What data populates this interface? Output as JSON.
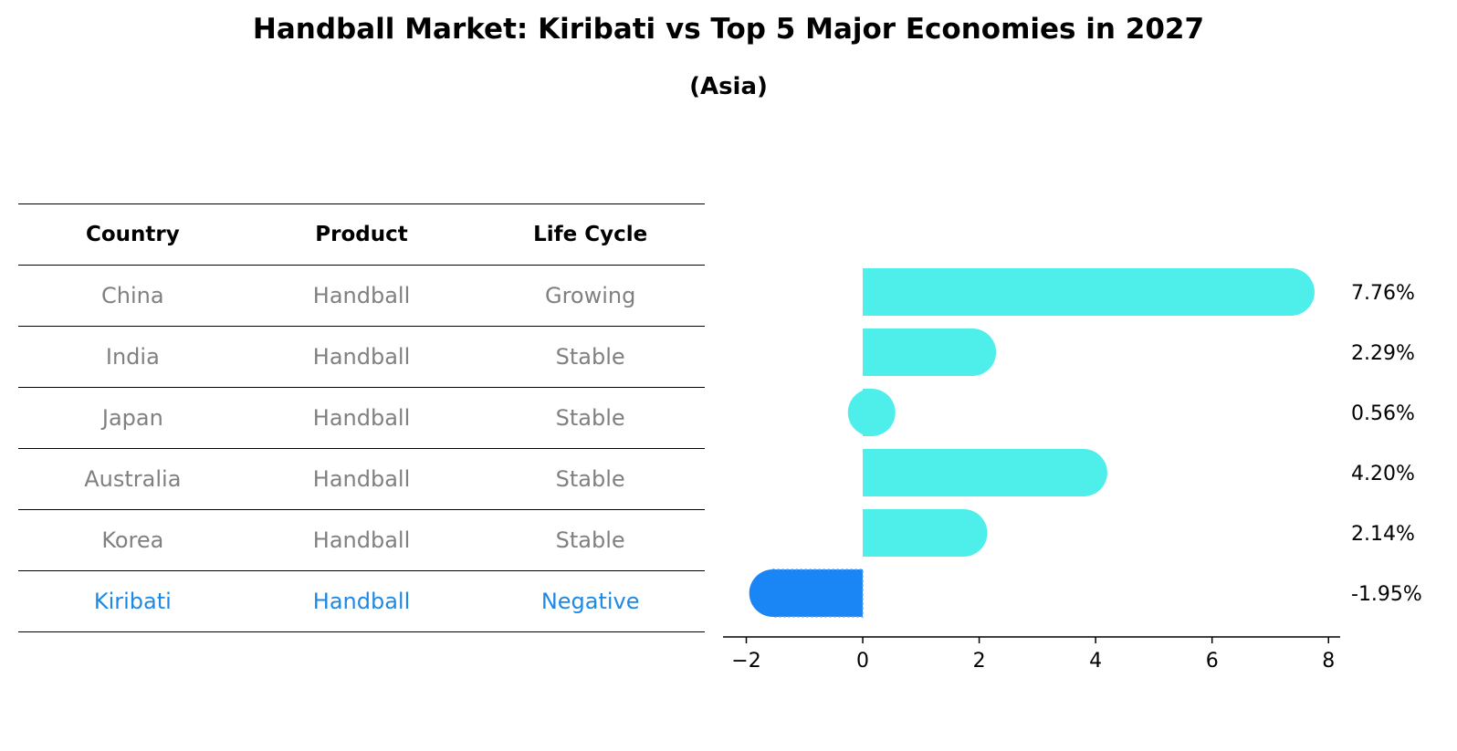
{
  "title": "Handball Market: Kiribati vs Top 5 Major Economies in 2027",
  "subtitle": "(Asia)",
  "table": {
    "headers": [
      "Country",
      "Product",
      "Life Cycle"
    ],
    "rows": [
      {
        "country": "China",
        "product": "Handball",
        "life_cycle": "Growing"
      },
      {
        "country": "India",
        "product": "Handball",
        "life_cycle": "Stable"
      },
      {
        "country": "Japan",
        "product": "Handball",
        "life_cycle": "Stable"
      },
      {
        "country": "Australia",
        "product": "Handball",
        "life_cycle": "Stable"
      },
      {
        "country": "Korea",
        "product": "Handball",
        "life_cycle": "Stable"
      },
      {
        "country": "Kiribati",
        "product": "Handball",
        "life_cycle": "Negative",
        "highlight": true
      }
    ]
  },
  "chart_data": {
    "type": "bar",
    "orientation": "horizontal",
    "categories": [
      "China",
      "India",
      "Japan",
      "Australia",
      "Korea",
      "Kiribati"
    ],
    "values": [
      7.76,
      2.29,
      0.56,
      4.2,
      2.14,
      -1.95
    ],
    "value_labels": [
      "7.76%",
      "2.29%",
      "0.56%",
      "4.20%",
      "2.14%",
      "-1.95%"
    ],
    "xlim": [
      -2.4,
      8.2
    ],
    "xticks": [
      -2,
      0,
      2,
      4,
      6,
      8
    ],
    "xtick_labels": [
      "−2",
      "0",
      "2",
      "4",
      "6",
      "8"
    ],
    "grid": false,
    "colors": {
      "default": "#4eeeea",
      "highlight": "#1a85f5"
    }
  }
}
